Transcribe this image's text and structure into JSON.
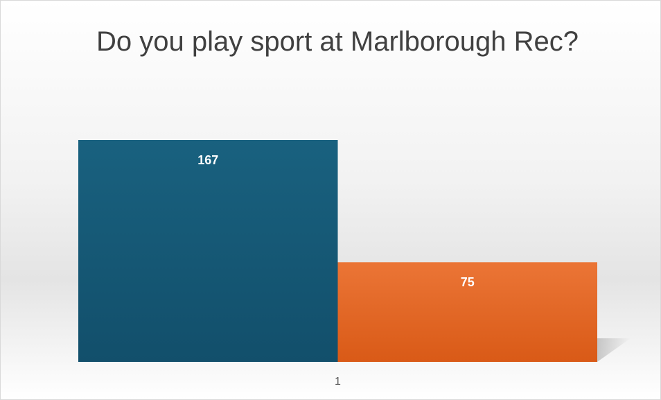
{
  "chart_data": {
    "type": "bar",
    "title": "Do you play sport at Marlborough Rec?",
    "categories": [
      "1"
    ],
    "series": [
      {
        "color": "#175f80",
        "values": [
          167
        ]
      },
      {
        "color": "#e56b2a",
        "values": [
          75
        ]
      }
    ],
    "grid": false
  }
}
